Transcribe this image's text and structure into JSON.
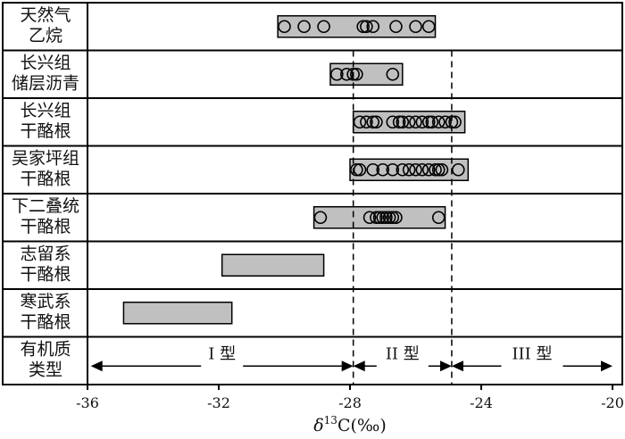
{
  "chart_data": {
    "type": "scatter",
    "xlim": [
      -36,
      -20
    ],
    "xticks": [
      -36,
      -32,
      -28,
      -24,
      -20
    ],
    "xlabel": {
      "delta": "δ",
      "sup": "13",
      "rest": "C(‰)"
    },
    "dashed_lines_x": [
      -27.9,
      -24.9
    ],
    "rows": [
      {
        "label": [
          "天然气",
          "乙烷"
        ],
        "range": [
          -30.2,
          -25.4
        ],
        "points": [
          -30.0,
          -29.4,
          -28.8,
          -27.6,
          -27.5,
          -27.3,
          -26.6,
          -26.0,
          -25.6
        ]
      },
      {
        "label": [
          "长兴组",
          "储层沥青"
        ],
        "range": [
          -28.6,
          -26.4
        ],
        "points": [
          -28.4,
          -28.1,
          -27.9,
          -27.8,
          -26.7
        ]
      },
      {
        "label": [
          "长兴组",
          "干酪根"
        ],
        "range": [
          -27.9,
          -24.5
        ],
        "points": [
          -27.7,
          -27.5,
          -27.3,
          -27.2,
          -26.7,
          -26.5,
          -26.4,
          -26.2,
          -26.0,
          -25.8,
          -25.6,
          -25.5,
          -25.3,
          -25.1,
          -24.9,
          -24.8
        ]
      },
      {
        "label": [
          "吴家坪组",
          "干酪根"
        ],
        "range": [
          -28.0,
          -24.4
        ],
        "points": [
          -27.8,
          -27.7,
          -27.3,
          -27.0,
          -26.7,
          -26.4,
          -26.2,
          -26.0,
          -25.8,
          -25.6,
          -25.4,
          -25.3,
          -25.2,
          -24.7
        ]
      },
      {
        "label": [
          "下二叠统",
          "干酪根"
        ],
        "range": [
          -29.1,
          -25.1
        ],
        "points": [
          -28.9,
          -27.4,
          -27.2,
          -27.1,
          -27.0,
          -26.9,
          -26.8,
          -26.7,
          -26.6,
          -25.3
        ]
      },
      {
        "label": [
          "志留系",
          "干酪根"
        ],
        "range": [
          -31.9,
          -28.8
        ],
        "points": []
      },
      {
        "label": [
          "寒武系",
          "干酪根"
        ],
        "range": [
          -34.9,
          -31.6
        ],
        "points": []
      }
    ],
    "last_row_label": [
      "有机质",
      "类型"
    ],
    "types": [
      {
        "label": "I 型",
        "from": -35.9,
        "to": -27.9
      },
      {
        "label": "II 型",
        "from": -27.9,
        "to": -24.9
      },
      {
        "label": "III 型",
        "from": -24.9,
        "to": -20.0
      }
    ],
    "colors": {
      "box": "#c0c0c0",
      "stroke": "#000000",
      "text": "#111111"
    }
  }
}
